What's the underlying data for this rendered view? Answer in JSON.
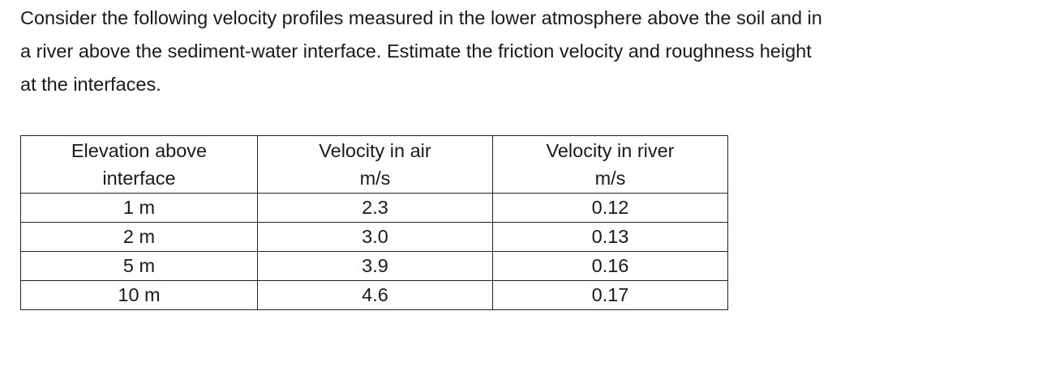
{
  "problem": {
    "line1": "Consider the following velocity profiles measured in the lower atmosphere above the soil and in",
    "line2": "a river above the sediment-water interface. Estimate the friction velocity and roughness height",
    "line3": "at the interfaces."
  },
  "table": {
    "headers": [
      {
        "line1": "Elevation above",
        "line2": "interface"
      },
      {
        "line1": "Velocity in air",
        "line2": "m/s"
      },
      {
        "line1": "Velocity in river",
        "line2": "m/s"
      }
    ],
    "rows": [
      {
        "elevation": "1 m",
        "air": "2.3",
        "river": "0.12"
      },
      {
        "elevation": "2 m",
        "air": "3.0",
        "river": "0.13"
      },
      {
        "elevation": "5 m",
        "air": "3.9",
        "river": "0.16"
      },
      {
        "elevation": "10 m",
        "air": "4.6",
        "river": "0.17"
      }
    ]
  }
}
